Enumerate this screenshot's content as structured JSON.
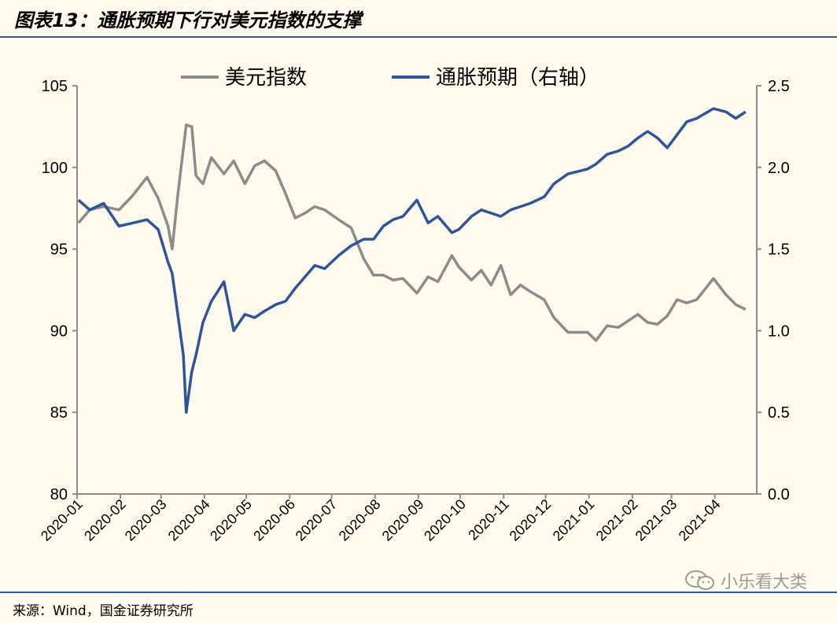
{
  "figure_title": "图表13：通胀预期下行对美元指数的支撑",
  "source_note": "来源：Wind，国金证券研究所",
  "watermark": "小乐看大类",
  "colors": {
    "usd_index": "#8C8C8C",
    "inflation": "#2F5597",
    "rule": "#2F5597"
  },
  "chart_data": {
    "type": "line",
    "title": "",
    "x_ticks": [
      "2020-01",
      "2020-02",
      "2020-03",
      "2020-04",
      "2020-05",
      "2020-06",
      "2020-07",
      "2020-08",
      "2020-09",
      "2020-10",
      "2020-11",
      "2020-12",
      "2021-01",
      "2021-02",
      "2021-03",
      "2021-04"
    ],
    "y_left": {
      "ylim": [
        80,
        105
      ],
      "ticks": [
        "80",
        "85",
        "90",
        "95",
        "100",
        "105"
      ]
    },
    "y_right": {
      "ylim": [
        0,
        2.5
      ],
      "ticks": [
        "0.0",
        "0.5",
        "1.0",
        "1.5",
        "2.0",
        "2.5"
      ]
    },
    "legend_position": "top-center",
    "series": [
      {
        "name": "美元指数",
        "axis": "left",
        "points": [
          [
            "2020-01-02",
            96.6
          ],
          [
            "2020-01-10",
            97.4
          ],
          [
            "2020-01-20",
            97.6
          ],
          [
            "2020-01-31",
            97.4
          ],
          [
            "2020-02-10",
            98.3
          ],
          [
            "2020-02-20",
            99.4
          ],
          [
            "2020-02-28",
            98.1
          ],
          [
            "2020-03-06",
            96.4
          ],
          [
            "2020-03-09",
            95.0
          ],
          [
            "2020-03-13",
            98.3
          ],
          [
            "2020-03-19",
            102.6
          ],
          [
            "2020-03-23",
            102.5
          ],
          [
            "2020-03-26",
            99.5
          ],
          [
            "2020-03-31",
            99.0
          ],
          [
            "2020-04-06",
            100.6
          ],
          [
            "2020-04-15",
            99.6
          ],
          [
            "2020-04-22",
            100.4
          ],
          [
            "2020-04-30",
            99.0
          ],
          [
            "2020-05-07",
            100.1
          ],
          [
            "2020-05-14",
            100.4
          ],
          [
            "2020-05-22",
            99.8
          ],
          [
            "2020-05-29",
            98.4
          ],
          [
            "2020-06-05",
            96.9
          ],
          [
            "2020-06-12",
            97.2
          ],
          [
            "2020-06-19",
            97.6
          ],
          [
            "2020-06-26",
            97.4
          ],
          [
            "2020-07-06",
            96.8
          ],
          [
            "2020-07-15",
            96.3
          ],
          [
            "2020-07-24",
            94.4
          ],
          [
            "2020-07-31",
            93.4
          ],
          [
            "2020-08-07",
            93.4
          ],
          [
            "2020-08-14",
            93.1
          ],
          [
            "2020-08-21",
            93.2
          ],
          [
            "2020-08-31",
            92.3
          ],
          [
            "2020-09-08",
            93.3
          ],
          [
            "2020-09-15",
            93.0
          ],
          [
            "2020-09-25",
            94.6
          ],
          [
            "2020-09-30",
            93.9
          ],
          [
            "2020-10-09",
            93.1
          ],
          [
            "2020-10-16",
            93.7
          ],
          [
            "2020-10-23",
            92.8
          ],
          [
            "2020-10-30",
            94.0
          ],
          [
            "2020-11-06",
            92.2
          ],
          [
            "2020-11-13",
            92.8
          ],
          [
            "2020-11-20",
            92.4
          ],
          [
            "2020-11-30",
            91.9
          ],
          [
            "2020-12-07",
            90.8
          ],
          [
            "2020-12-17",
            89.9
          ],
          [
            "2020-12-31",
            89.9
          ],
          [
            "2021-01-06",
            89.4
          ],
          [
            "2021-01-14",
            90.3
          ],
          [
            "2021-01-22",
            90.2
          ],
          [
            "2021-01-29",
            90.6
          ],
          [
            "2021-02-05",
            91.0
          ],
          [
            "2021-02-12",
            90.5
          ],
          [
            "2021-02-19",
            90.4
          ],
          [
            "2021-02-26",
            90.9
          ],
          [
            "2021-03-05",
            91.9
          ],
          [
            "2021-03-12",
            91.7
          ],
          [
            "2021-03-19",
            91.9
          ],
          [
            "2021-03-31",
            93.2
          ],
          [
            "2021-04-09",
            92.2
          ],
          [
            "2021-04-16",
            91.6
          ],
          [
            "2021-04-23",
            91.3
          ]
        ]
      },
      {
        "name": "通胀预期（右轴）",
        "axis": "right",
        "points": [
          [
            "2020-01-02",
            1.8
          ],
          [
            "2020-01-10",
            1.74
          ],
          [
            "2020-01-20",
            1.78
          ],
          [
            "2020-01-31",
            1.64
          ],
          [
            "2020-02-10",
            1.66
          ],
          [
            "2020-02-20",
            1.68
          ],
          [
            "2020-02-28",
            1.62
          ],
          [
            "2020-03-06",
            1.42
          ],
          [
            "2020-03-09",
            1.35
          ],
          [
            "2020-03-13",
            1.1
          ],
          [
            "2020-03-17",
            0.85
          ],
          [
            "2020-03-19",
            0.5
          ],
          [
            "2020-03-23",
            0.75
          ],
          [
            "2020-03-26",
            0.85
          ],
          [
            "2020-03-31",
            1.05
          ],
          [
            "2020-04-06",
            1.18
          ],
          [
            "2020-04-15",
            1.3
          ],
          [
            "2020-04-22",
            1.0
          ],
          [
            "2020-04-30",
            1.1
          ],
          [
            "2020-05-07",
            1.08
          ],
          [
            "2020-05-14",
            1.12
          ],
          [
            "2020-05-22",
            1.16
          ],
          [
            "2020-05-29",
            1.18
          ],
          [
            "2020-06-05",
            1.26
          ],
          [
            "2020-06-12",
            1.33
          ],
          [
            "2020-06-19",
            1.4
          ],
          [
            "2020-06-26",
            1.38
          ],
          [
            "2020-07-06",
            1.46
          ],
          [
            "2020-07-15",
            1.52
          ],
          [
            "2020-07-24",
            1.56
          ],
          [
            "2020-07-31",
            1.56
          ],
          [
            "2020-08-07",
            1.64
          ],
          [
            "2020-08-14",
            1.68
          ],
          [
            "2020-08-21",
            1.7
          ],
          [
            "2020-08-31",
            1.8
          ],
          [
            "2020-09-08",
            1.66
          ],
          [
            "2020-09-15",
            1.7
          ],
          [
            "2020-09-25",
            1.6
          ],
          [
            "2020-09-30",
            1.62
          ],
          [
            "2020-10-09",
            1.7
          ],
          [
            "2020-10-16",
            1.74
          ],
          [
            "2020-10-23",
            1.72
          ],
          [
            "2020-10-30",
            1.7
          ],
          [
            "2020-11-06",
            1.74
          ],
          [
            "2020-11-13",
            1.76
          ],
          [
            "2020-11-20",
            1.78
          ],
          [
            "2020-11-30",
            1.82
          ],
          [
            "2020-12-07",
            1.9
          ],
          [
            "2020-12-17",
            1.96
          ],
          [
            "2020-12-31",
            1.99
          ],
          [
            "2021-01-06",
            2.02
          ],
          [
            "2021-01-14",
            2.08
          ],
          [
            "2021-01-22",
            2.1
          ],
          [
            "2021-01-29",
            2.13
          ],
          [
            "2021-02-05",
            2.18
          ],
          [
            "2021-02-12",
            2.22
          ],
          [
            "2021-02-19",
            2.18
          ],
          [
            "2021-02-26",
            2.12
          ],
          [
            "2021-03-05",
            2.2
          ],
          [
            "2021-03-12",
            2.28
          ],
          [
            "2021-03-19",
            2.3
          ],
          [
            "2021-03-31",
            2.36
          ],
          [
            "2021-04-09",
            2.34
          ],
          [
            "2021-04-16",
            2.3
          ],
          [
            "2021-04-23",
            2.34
          ]
        ]
      }
    ]
  }
}
